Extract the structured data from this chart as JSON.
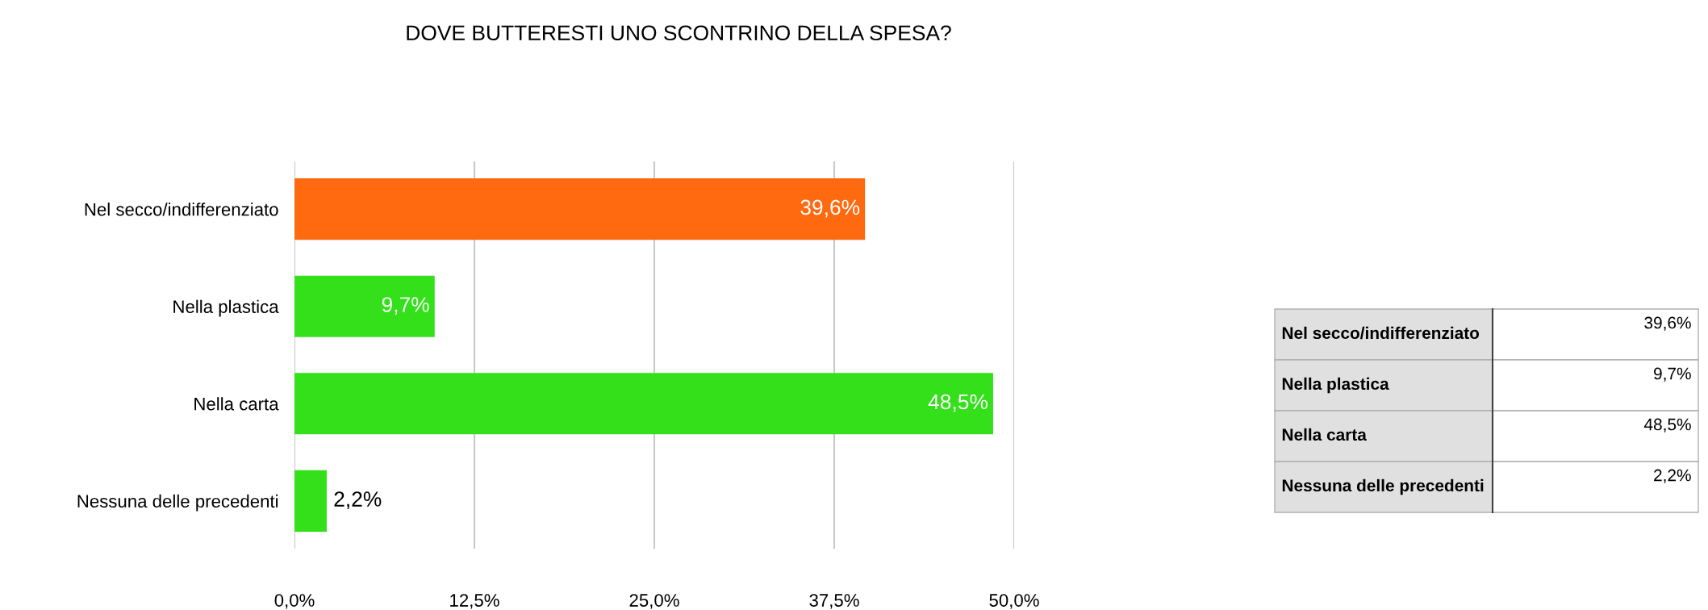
{
  "chart_data": {
    "type": "bar",
    "orientation": "horizontal",
    "title": "DOVE BUTTERESTI UNO SCONTRINO DELLA SPESA?",
    "categories": [
      "Nel secco/indifferenziato",
      "Nella plastica",
      "Nella carta",
      "Nessuna delle precedenti"
    ],
    "values": [
      39.6,
      9.7,
      48.5,
      2.2
    ],
    "value_labels": [
      "39,6%",
      "9,7%",
      "48,5%",
      "2,2%"
    ],
    "colors": [
      "#ff6a10",
      "#33e01a",
      "#33e01a",
      "#33e01a"
    ],
    "xlim": [
      0,
      50
    ],
    "xticks": [
      {
        "value": 0,
        "label": "0,0%"
      },
      {
        "value": 12.5,
        "label": "12,5%"
      },
      {
        "value": 25,
        "label": "25,0%"
      },
      {
        "value": 37.5,
        "label": "37,5%"
      },
      {
        "value": 50,
        "label": "50,0%"
      }
    ],
    "grid": "x"
  }
}
